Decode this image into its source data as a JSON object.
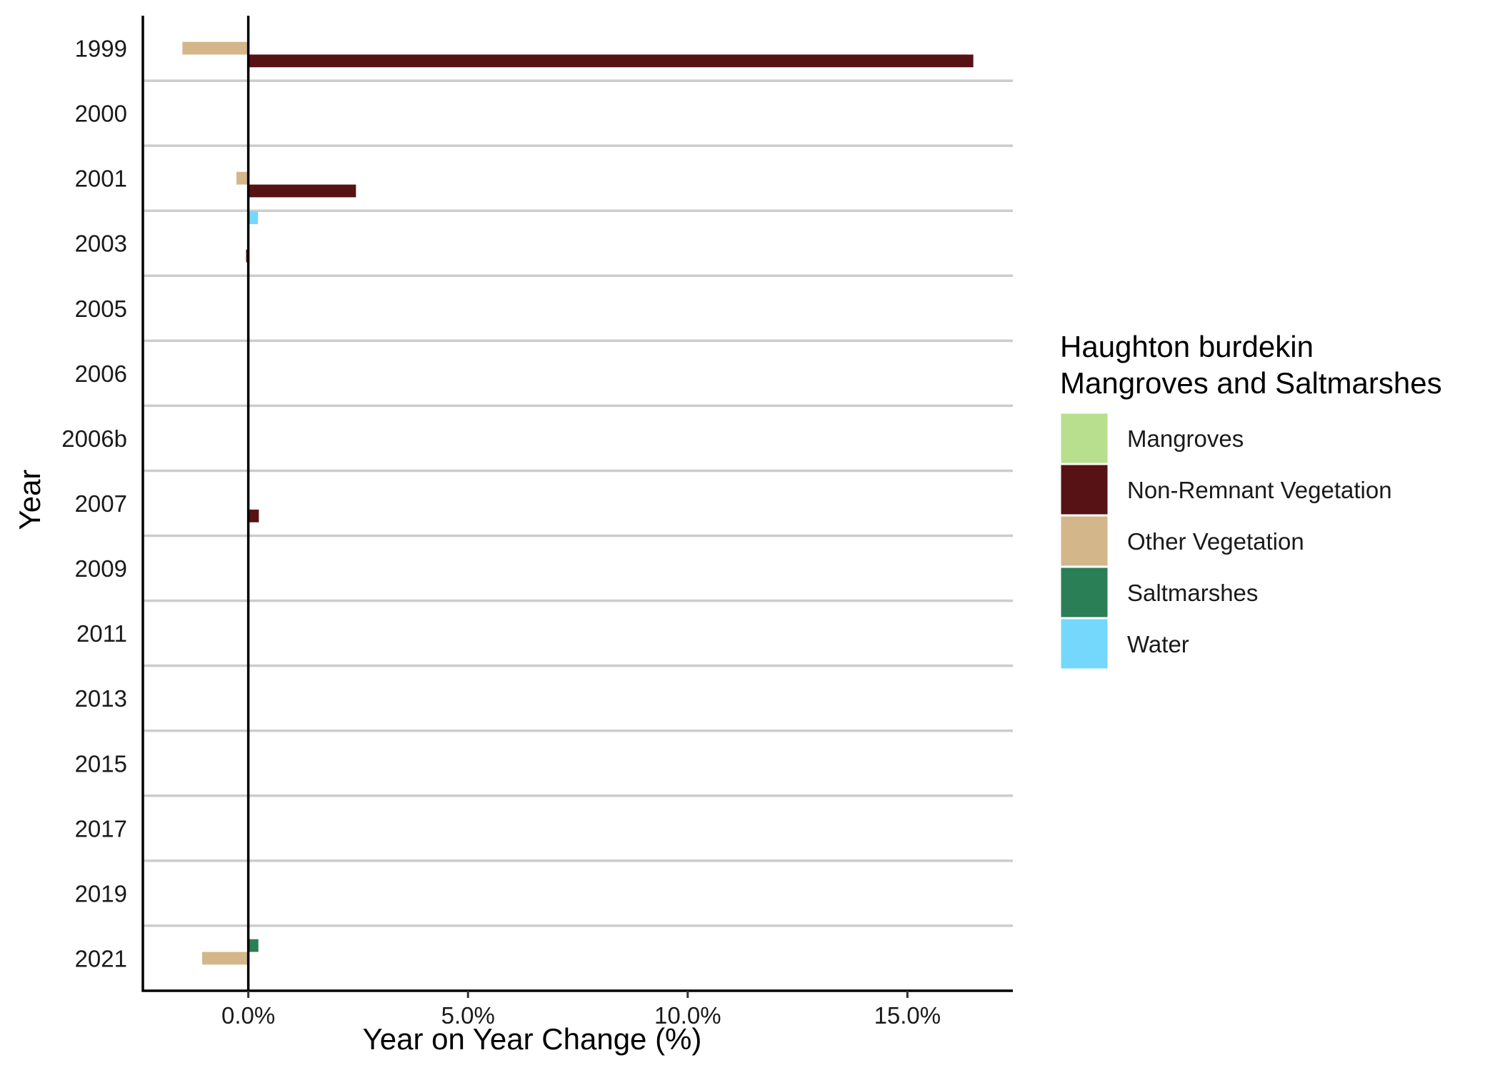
{
  "chart_data": {
    "type": "bar",
    "orientation": "horizontal",
    "title": "",
    "xlabel": "Year on Year Change (%)",
    "ylabel": "Year",
    "xlim": [
      -2.4,
      17.4
    ],
    "xticks": [
      0,
      5,
      10,
      15
    ],
    "xtick_labels": [
      "0.0%",
      "5.0%",
      "10.0%",
      "15.0%"
    ],
    "categories": [
      "1999",
      "2000",
      "2001",
      "2003",
      "2005",
      "2006",
      "2006b",
      "2007",
      "2009",
      "2011",
      "2013",
      "2015",
      "2017",
      "2019",
      "2021"
    ],
    "series": [
      {
        "name": "Mangroves",
        "color": "#b8df8d",
        "values": [
          0,
          0,
          0,
          0,
          0,
          0,
          0,
          0,
          0,
          0,
          0,
          0,
          0,
          0,
          0
        ]
      },
      {
        "name": "Non-Remnant Vegetation",
        "color": "#561214",
        "values": [
          16.5,
          0,
          2.45,
          -0.05,
          0,
          0,
          0,
          0.24,
          0,
          0,
          0,
          0,
          0,
          0,
          0
        ]
      },
      {
        "name": "Other Vegetation",
        "color": "#d4b68b",
        "values": [
          -1.5,
          0,
          -0.27,
          0,
          0,
          0,
          0,
          0,
          0,
          0,
          0,
          0,
          0,
          0,
          -1.05
        ]
      },
      {
        "name": "Saltmarshes",
        "color": "#2a7f56",
        "values": [
          0,
          0,
          0,
          0,
          0,
          0,
          0,
          0,
          0,
          0,
          0,
          0,
          0,
          0,
          0.23
        ]
      },
      {
        "name": "Water",
        "color": "#74d8fc",
        "values": [
          0,
          0,
          0,
          0.22,
          0,
          0,
          0,
          0,
          0,
          0,
          0,
          0,
          0,
          0,
          0
        ]
      }
    ],
    "bar_slots": [
      [
        "Water",
        "Saltmarshes",
        "Other Vegetation",
        "Non-Remnant Vegetation",
        "Mangroves"
      ]
    ],
    "legend": {
      "title_lines": [
        "Haughton burdekin",
        "Mangroves and Saltmarshes"
      ],
      "items": [
        "Mangroves",
        "Non-Remnant Vegetation",
        "Other Vegetation",
        "Saltmarshes",
        "Water"
      ],
      "position": "right"
    },
    "grid": "horizontal-separators"
  }
}
